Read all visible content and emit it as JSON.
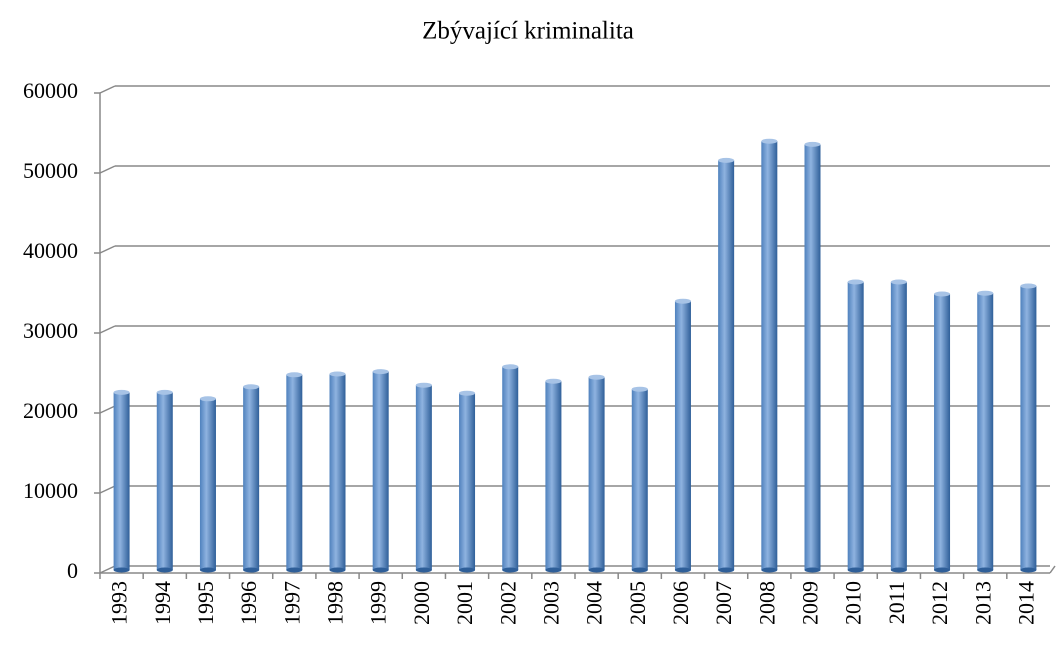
{
  "chart_data": {
    "type": "bar",
    "title": "Zbývající kriminalita",
    "categories": [
      "1993",
      "1994",
      "1995",
      "1996",
      "1997",
      "1998",
      "1999",
      "2000",
      "2001",
      "2002",
      "2003",
      "2004",
      "2005",
      "2006",
      "2007",
      "2008",
      "2009",
      "2010",
      "2011",
      "2012",
      "2013",
      "2014"
    ],
    "values": [
      22200,
      22200,
      21400,
      22900,
      24400,
      24500,
      24800,
      23100,
      22100,
      25400,
      23600,
      24100,
      22600,
      33600,
      51200,
      53600,
      53200,
      36000,
      36000,
      34500,
      34600,
      35500
    ],
    "color": "#4f81bd",
    "ylim": [
      0,
      60000
    ],
    "yticks": [
      0,
      10000,
      20000,
      30000,
      40000,
      50000,
      60000
    ],
    "grid": true
  }
}
